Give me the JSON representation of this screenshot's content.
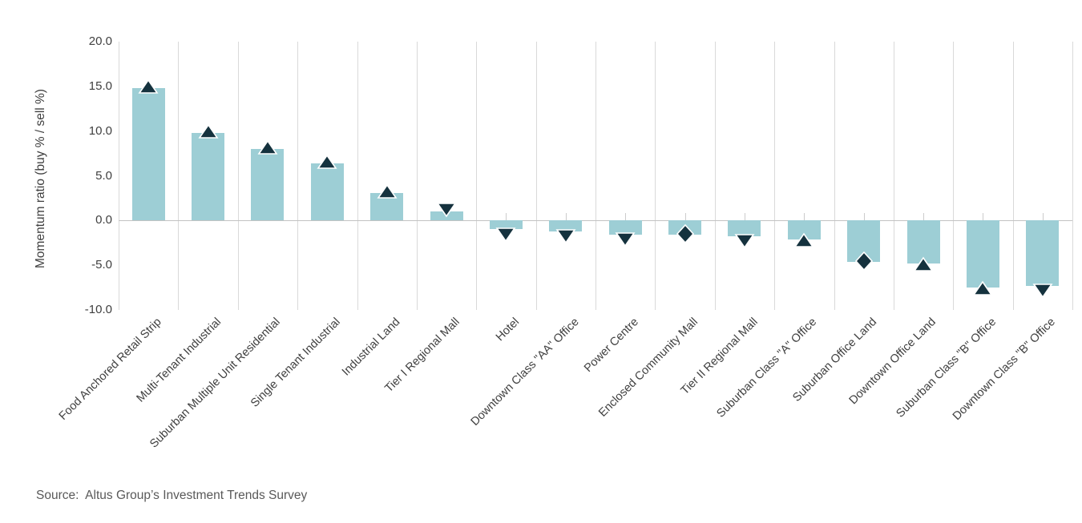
{
  "chart_data": {
    "type": "bar",
    "title": "",
    "xlabel": "",
    "ylabel": "Momentum ratio (buy % / sell %)",
    "ylim": [
      -10,
      20
    ],
    "ytick_values": [
      20,
      15,
      10,
      5,
      0,
      -5,
      -10
    ],
    "ytick_labels": [
      "20.0",
      "15.0",
      "10.0",
      "5.0",
      "0.0",
      "-5.0",
      "-10.0"
    ],
    "grid": "vertical category gridlines, axis line at 0",
    "legend_position": "none",
    "categories": [
      "Food Anchored Retail Strip",
      "Multi-Tenant Industrial",
      "Suburban Multiple Unit Residential",
      "Single Tenant Industrial",
      "Industrial Land",
      "Tier I Regional Mall",
      "Hotel",
      "Downtown Class \"AA\" Office",
      "Power Centre",
      "Enclosed Community Mall",
      "Tier II Regional Mall",
      "Suburban Class \"A\" Office",
      "Suburban Office Land",
      "Downtown Office Land",
      "Suburban Class \"B\" Office",
      "Downtown Class \"B\" Office"
    ],
    "series": [
      {
        "name": "Momentum ratio (buy % / sell %)",
        "values": [
          14.8,
          9.8,
          8.0,
          6.4,
          3.1,
          1.0,
          -1.0,
          -1.2,
          -1.6,
          -1.6,
          -1.8,
          -2.1,
          -4.6,
          -4.8,
          -7.5,
          -7.3
        ]
      }
    ],
    "trend_markers": [
      "up",
      "up",
      "up",
      "up",
      "up",
      "down",
      "down",
      "down",
      "down",
      "same",
      "down",
      "up",
      "same",
      "up",
      "up",
      "down"
    ]
  },
  "source": {
    "text": "Source:  Altus Group’s Investment Trends Survey"
  },
  "colors": {
    "bar_fill": "#9dced5",
    "marker_fill": "#15323e",
    "marker_outline": "#ffffff",
    "gridline": "#d9d9d9",
    "axis_line": "#c3c3c3",
    "tick_text": "#3f3f3f",
    "source_text": "#595959"
  }
}
